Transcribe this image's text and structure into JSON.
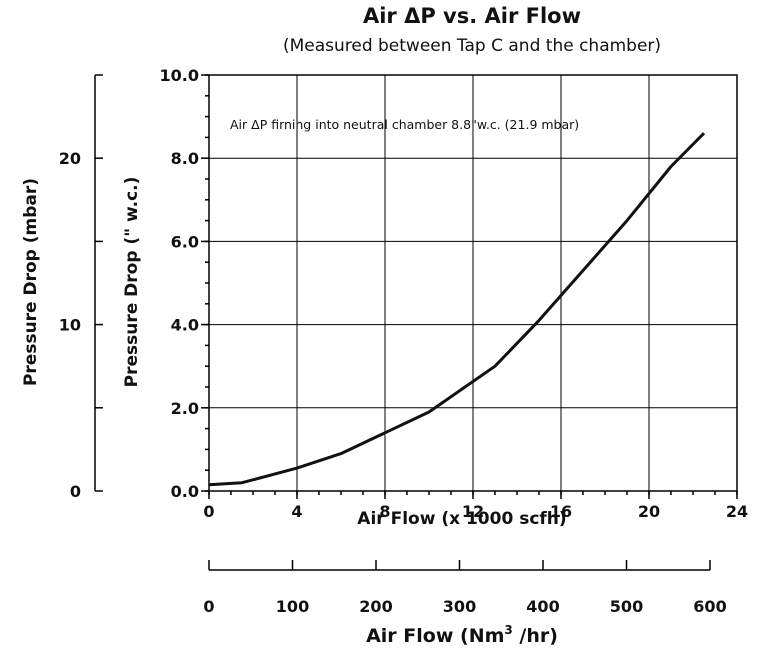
{
  "chart_data": {
    "type": "line",
    "title": "Air ΔP vs. Air Flow",
    "subtitle": "(Measured between Tap C and the chamber)",
    "annotation": "Air ΔP firning into neutral chamber 8.8\"w.c. (21.9 mbar)",
    "xlabel": "Air Flow (x 1000 scfh)",
    "ylabel": "Pressure Drop (\" w.c.)",
    "xlim": [
      0,
      24
    ],
    "ylim": [
      0,
      10
    ],
    "x_ticks": [
      "0",
      "4",
      "8",
      "12",
      "16",
      "20",
      "24"
    ],
    "y_ticks": [
      "0.0",
      "2.0",
      "4.0",
      "6.0",
      "8.0",
      "10.0"
    ],
    "grid": true,
    "series": [
      {
        "x": [
          0,
          1.5,
          4,
          6,
          8,
          10,
          13,
          15,
          17,
          19,
          21,
          22.5
        ],
        "values": [
          0.15,
          0.2,
          0.55,
          0.9,
          1.4,
          1.9,
          3.0,
          4.1,
          5.3,
          6.5,
          7.8,
          8.6
        ]
      }
    ],
    "secondary_x_axis": {
      "label_text": "Air Flow (Nm",
      "label_sup": "3",
      "label_end": " /hr)",
      "range": [
        0,
        600
      ],
      "ticks": [
        "0",
        "100",
        "200",
        "300",
        "400",
        "500",
        "600"
      ]
    },
    "secondary_y_axis": {
      "label": "Pressure Drop (mbar)",
      "range": [
        0,
        25
      ],
      "ticks": [
        "0",
        "10",
        "20"
      ]
    }
  }
}
